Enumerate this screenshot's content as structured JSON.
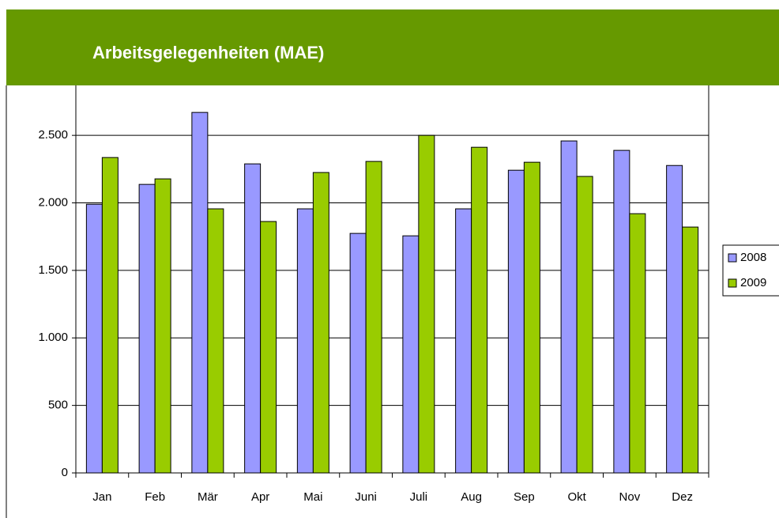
{
  "chart_data": {
    "type": "bar",
    "title": "Arbeitsgelegenheiten (MAE)",
    "categories": [
      "Jan",
      "Feb",
      "Mär",
      "Apr",
      "Mai",
      "Juni",
      "Juli",
      "Aug",
      "Sep",
      "Okt",
      "Nov",
      "Dez"
    ],
    "series": [
      {
        "name": "2008",
        "color": "#9999ff",
        "values": [
          1990,
          2137,
          2670,
          2289,
          1956,
          1774,
          1756,
          1956,
          2242,
          2459,
          2389,
          2277
        ]
      },
      {
        "name": "2009",
        "color": "#99cc00",
        "values": [
          2336,
          2178,
          1956,
          1862,
          2225,
          2307,
          2500,
          2412,
          2301,
          2196,
          1920,
          1821
        ]
      }
    ],
    "ylim": [
      0,
      3000
    ],
    "yticks": [
      0,
      500,
      {
        "value": 1000,
        "label": "1.000"
      },
      {
        "value": 1500,
        "label": "1.500"
      },
      {
        "value": 2000,
        "label": "2.000"
      },
      {
        "value": 2500,
        "label": "2.500"
      }
    ],
    "grid": true,
    "legend": "right"
  }
}
